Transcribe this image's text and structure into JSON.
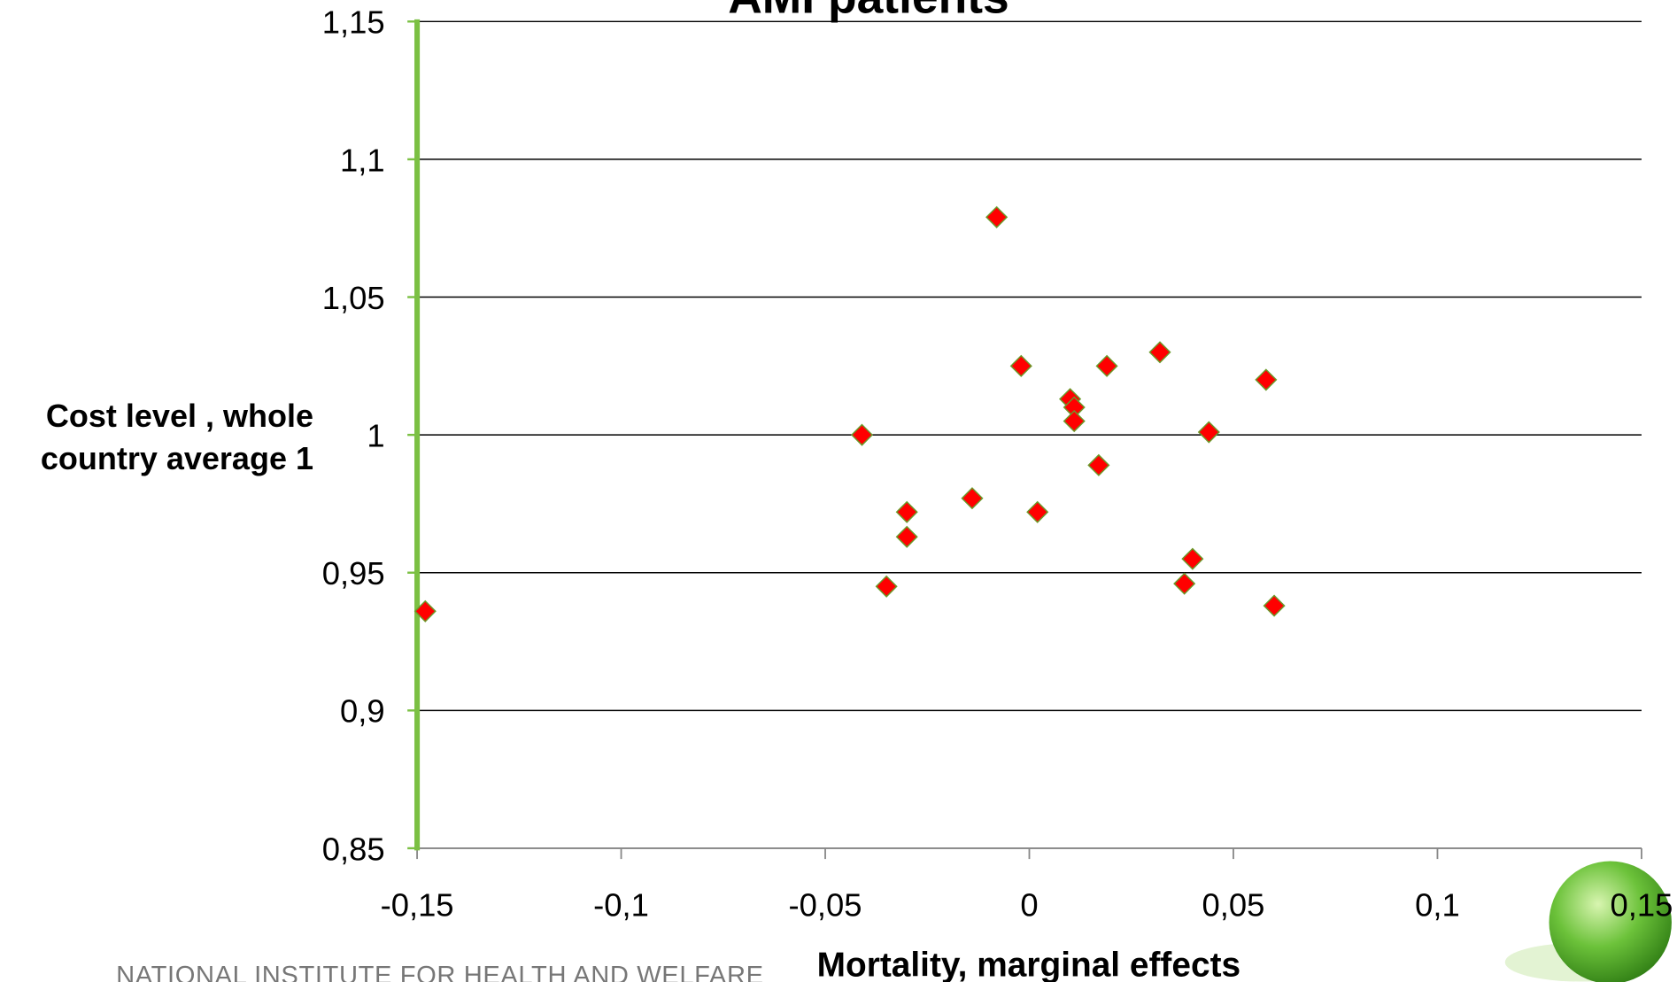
{
  "chart_data": {
    "type": "scatter",
    "title": "AMI patients",
    "x_label": "Mortality, marginal effects",
    "y_label": "Cost level , whole country average 1",
    "footer": "NATIONAL INSTITUTE FOR HEALTH AND WELFARE",
    "xlim": [
      -0.15,
      0.15
    ],
    "xticks": [
      {
        "value": -0.15,
        "label": "-0,15"
      },
      {
        "value": -0.1,
        "label": "-0,1"
      },
      {
        "value": -0.05,
        "label": "-0,05"
      },
      0,
      {
        "value": 0.05,
        "label": "0,05"
      },
      {
        "value": 0.1,
        "label": "0,1"
      },
      {
        "value": 0.15,
        "label": "0,15"
      }
    ],
    "ylim": [
      0.85,
      1.15
    ],
    "yticks": [
      {
        "value": 0.85,
        "label": "0,85"
      },
      {
        "value": 0.9,
        "label": "0,9"
      },
      {
        "value": 0.95,
        "label": "0,95"
      },
      1,
      {
        "value": 1.05,
        "label": "1,05"
      },
      {
        "value": 1.1,
        "label": "1,1"
      },
      {
        "value": 1.15,
        "label": "1,15"
      }
    ],
    "grid": true,
    "series": [
      {
        "color": "#ff0000",
        "x": [
          -0.148,
          -0.041,
          -0.035,
          -0.03,
          -0.03,
          -0.014,
          -0.008,
          -0.002,
          0.002,
          0.01,
          0.011,
          0.011,
          0.017,
          0.019,
          0.032,
          0.038,
          0.04,
          0.044,
          0.058,
          0.06
        ],
        "values": [
          0.936,
          1.0,
          0.945,
          0.963,
          0.972,
          0.977,
          1.079,
          1.025,
          0.972,
          1.013,
          1.01,
          1.005,
          0.989,
          1.025,
          1.03,
          0.946,
          0.955,
          1.001,
          1.02,
          0.938
        ]
      }
    ]
  }
}
